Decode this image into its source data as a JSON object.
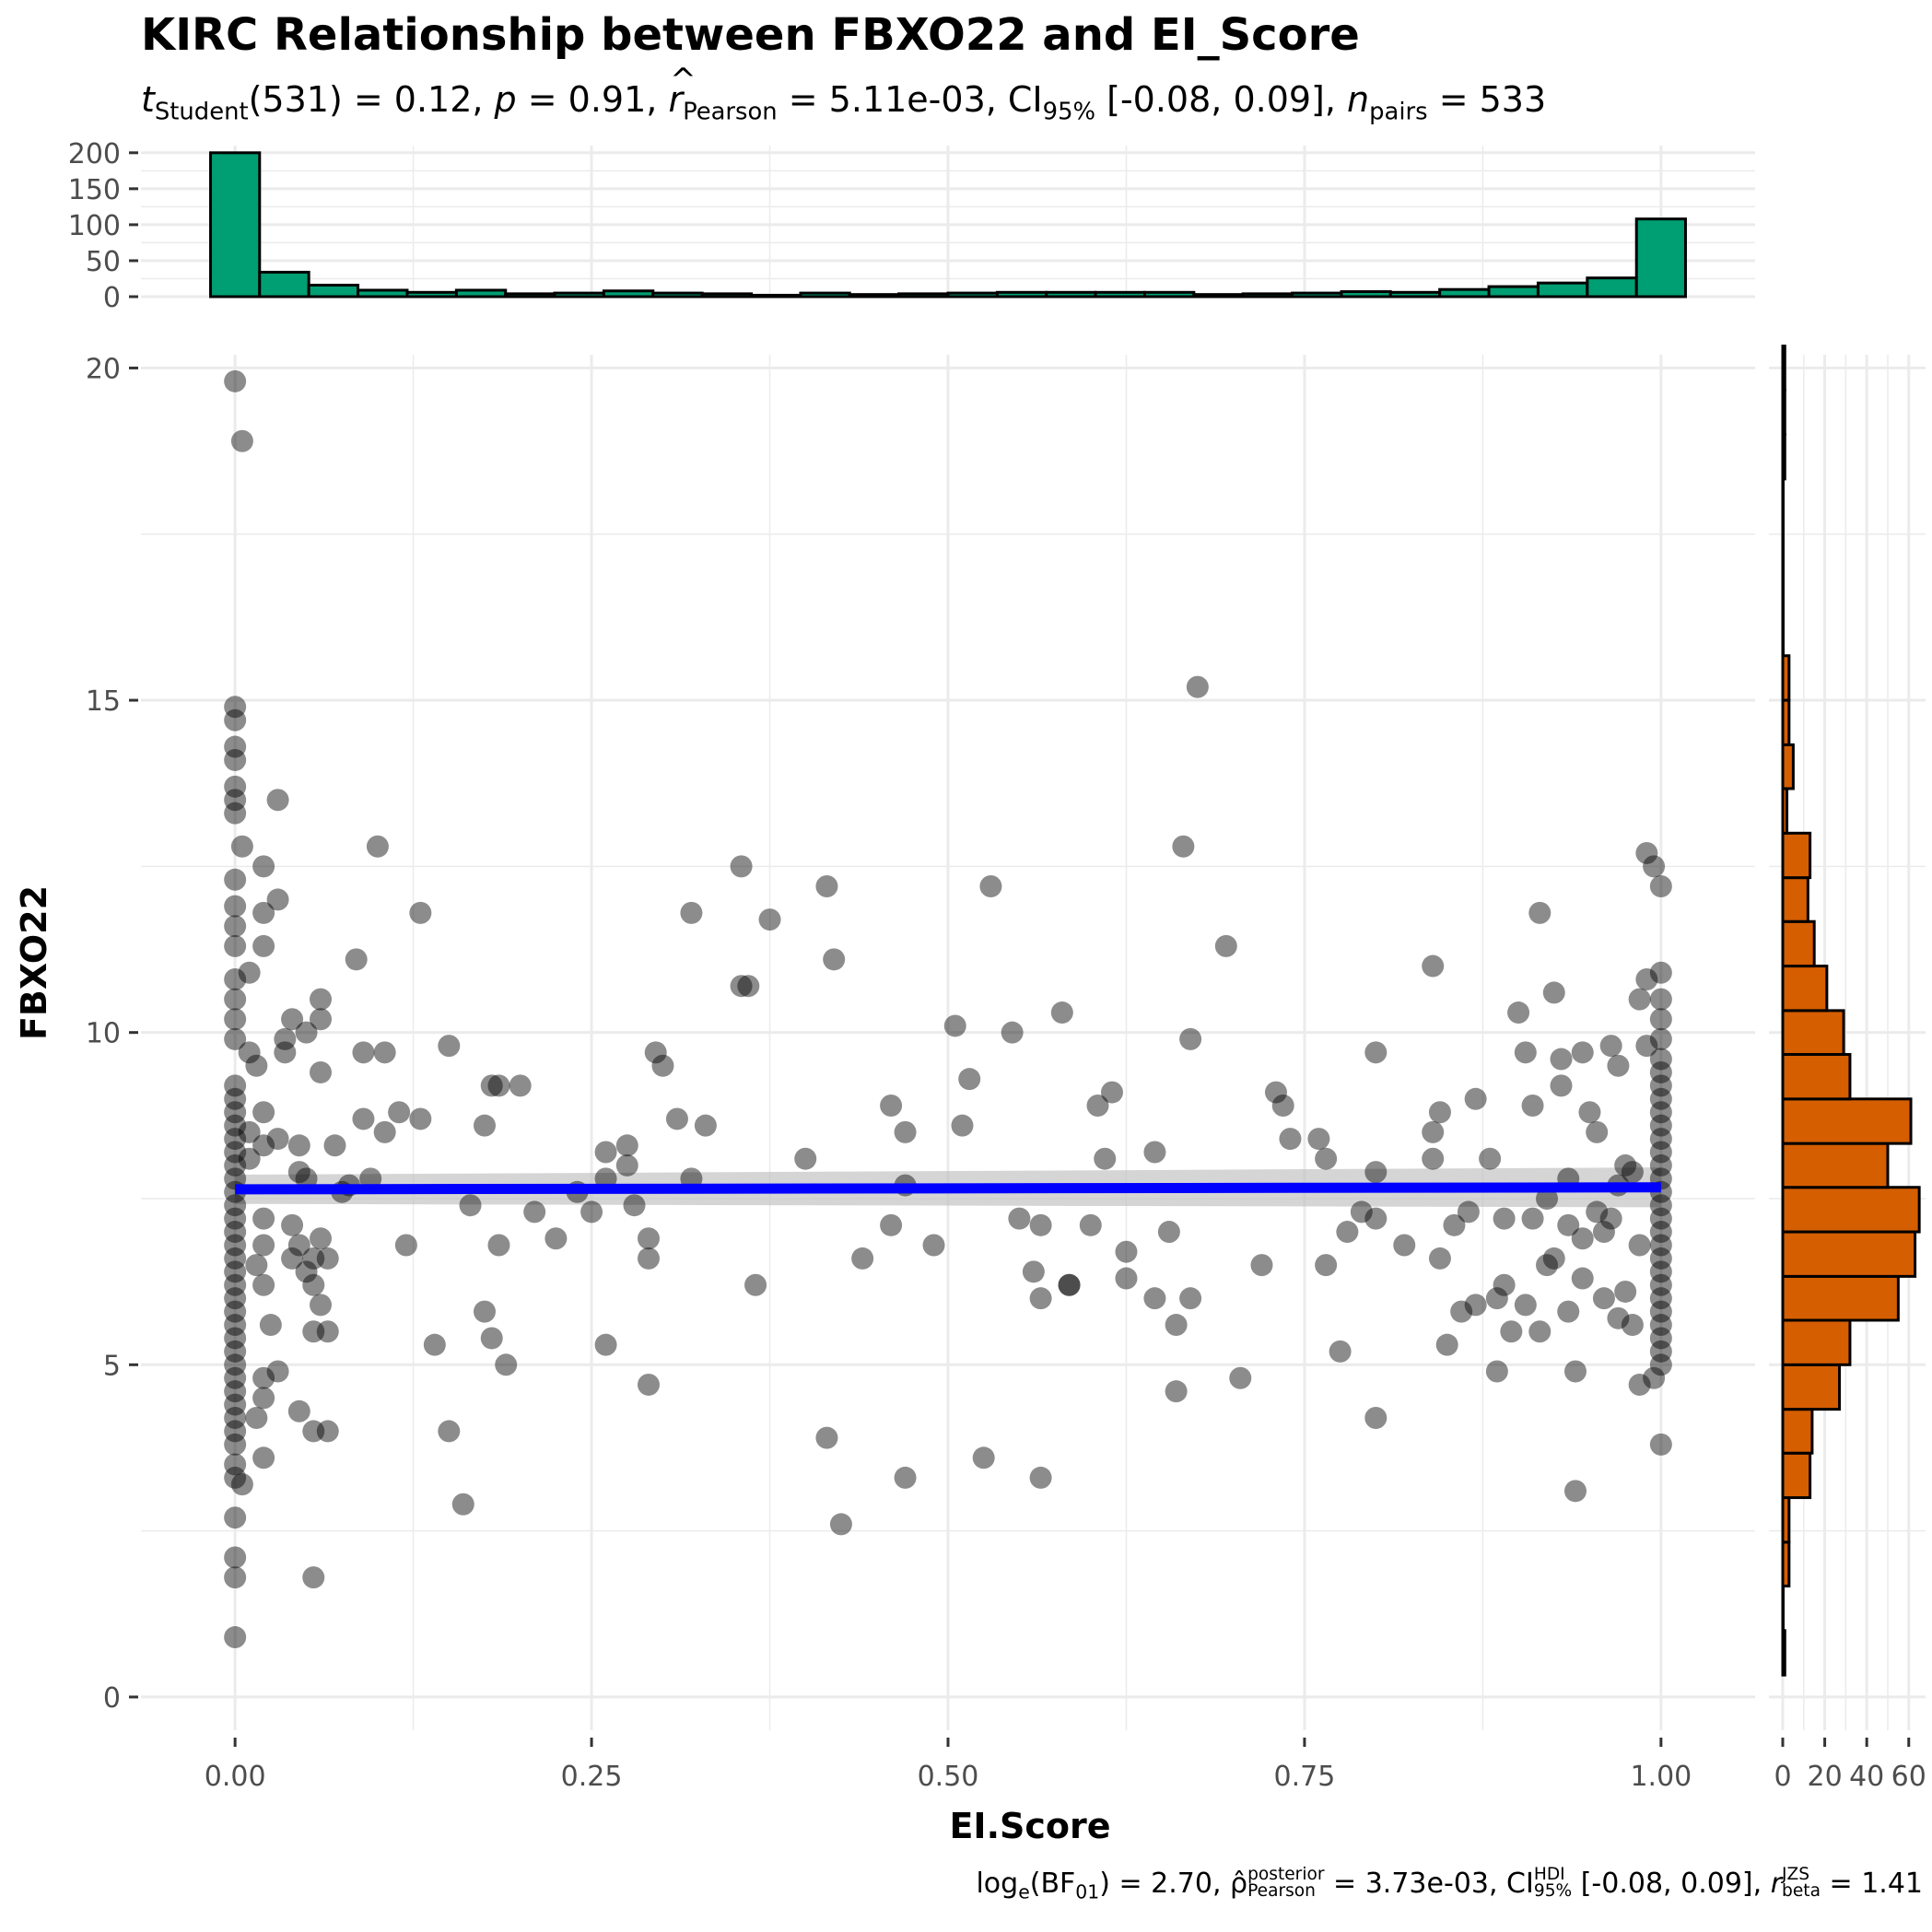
{
  "title": "KIRC Relationship between FBXO22 and EI_Score",
  "subtitle": {
    "t_symbol": "t",
    "t_sub": "Student",
    "t_text": "(531) = 0.12, ",
    "p_symbol": "p",
    "p_text": " = 0.91, ",
    "r_symbol": "r",
    "r_sub": "Pearson",
    "r_text": " = 5.11e-03, CI",
    "ci_sub": "95%",
    "ci_text": " [-0.08, 0.09], ",
    "n_symbol": "n",
    "n_sub": "pairs",
    "n_text": " = 533"
  },
  "footer": {
    "log_text": "log",
    "log_sub": "e",
    "bf_text": "(BF",
    "bf_sub": "01",
    "bf_close": ") = 2.70, ",
    "rho_symbol": "ρ̂",
    "rho_sup": "posterior",
    "rho_sub": "Pearson",
    "rho_text": " = 3.73e-03, CI",
    "hdi_sup": "HDI",
    "hdi_sub": "95%",
    "hdi_text": " [-0.08, 0.09], ",
    "rb_symbol": "r",
    "rb_sup": "JZS",
    "rb_sub": "beta",
    "rb_text": " = 1.41"
  },
  "chart_data": {
    "type": "scatter",
    "xlabel": "EI.Score",
    "ylabel": "FBXO22",
    "xlim": [
      -0.066,
      1.066
    ],
    "ylim": [
      -0.5,
      20.2
    ],
    "x_ticks": [
      0,
      0.25,
      0.5,
      0.75,
      1
    ],
    "x_tick_labels": [
      "0.00",
      "0.25",
      "0.50",
      "0.75",
      "1.00"
    ],
    "y_ticks": [
      0,
      5,
      10,
      15,
      20
    ],
    "y_tick_labels": [
      "0",
      "5",
      "10",
      "15",
      "20"
    ],
    "grid": true,
    "colors": {
      "points": "#000000",
      "fit_line": "#0000ff",
      "ci_band": "#bebebe",
      "top_hist": "#009e73",
      "right_hist": "#d55e00"
    },
    "fit": {
      "x": [
        0,
        1
      ],
      "y": [
        7.64,
        7.67
      ],
      "ci_lower": [
        7.42,
        7.37
      ],
      "ci_upper": [
        7.86,
        7.97
      ]
    },
    "points": [
      [
        0.0,
        19.8
      ],
      [
        0.005,
        18.9
      ],
      [
        0.0,
        14.9
      ],
      [
        0.0,
        14.7
      ],
      [
        0.0,
        14.3
      ],
      [
        0.0,
        14.1
      ],
      [
        0.0,
        13.7
      ],
      [
        0.0,
        13.5
      ],
      [
        0.0,
        13.3
      ],
      [
        0.03,
        13.5
      ],
      [
        0.005,
        12.8
      ],
      [
        0.0,
        12.3
      ],
      [
        0.02,
        12.5
      ],
      [
        0.03,
        12.0
      ],
      [
        0.0,
        11.9
      ],
      [
        0.02,
        11.8
      ],
      [
        0.0,
        11.6
      ],
      [
        0.0,
        11.3
      ],
      [
        0.02,
        11.3
      ],
      [
        0.01,
        10.9
      ],
      [
        0.0,
        10.8
      ],
      [
        0.0,
        10.5
      ],
      [
        0.0,
        10.2
      ],
      [
        0.0,
        9.9
      ],
      [
        0.01,
        9.7
      ],
      [
        0.04,
        10.2
      ],
      [
        0.035,
        9.9
      ],
      [
        0.035,
        9.7
      ],
      [
        0.05,
        10.0
      ],
      [
        0.06,
        9.4
      ],
      [
        0.06,
        10.2
      ],
      [
        0.06,
        10.5
      ],
      [
        0.085,
        11.1
      ],
      [
        0.1,
        12.8
      ],
      [
        0.13,
        11.8
      ],
      [
        0.0,
        9.2
      ],
      [
        0.0,
        9.0
      ],
      [
        0.0,
        8.8
      ],
      [
        0.0,
        8.6
      ],
      [
        0.0,
        8.4
      ],
      [
        0.0,
        8.2
      ],
      [
        0.0,
        8.0
      ],
      [
        0.0,
        7.8
      ],
      [
        0.0,
        7.6
      ],
      [
        0.0,
        7.4
      ],
      [
        0.0,
        7.2
      ],
      [
        0.0,
        7.0
      ],
      [
        0.0,
        6.8
      ],
      [
        0.0,
        6.6
      ],
      [
        0.0,
        6.4
      ],
      [
        0.0,
        6.2
      ],
      [
        0.0,
        6.0
      ],
      [
        0.0,
        5.8
      ],
      [
        0.0,
        5.6
      ],
      [
        0.0,
        5.4
      ],
      [
        0.0,
        5.2
      ],
      [
        0.0,
        5.0
      ],
      [
        0.0,
        4.8
      ],
      [
        0.0,
        4.6
      ],
      [
        0.0,
        4.4
      ],
      [
        0.0,
        4.2
      ],
      [
        0.0,
        4.0
      ],
      [
        0.0,
        3.8
      ],
      [
        0.0,
        3.5
      ],
      [
        0.0,
        3.3
      ],
      [
        0.0,
        2.7
      ],
      [
        0.0,
        2.1
      ],
      [
        0.0,
        1.8
      ],
      [
        0.0,
        0.9
      ],
      [
        0.005,
        3.2
      ],
      [
        0.01,
        8.5
      ],
      [
        0.01,
        8.1
      ],
      [
        0.015,
        9.5
      ],
      [
        0.02,
        8.8
      ],
      [
        0.02,
        8.3
      ],
      [
        0.03,
        8.4
      ],
      [
        0.045,
        8.3
      ],
      [
        0.02,
        7.2
      ],
      [
        0.02,
        6.8
      ],
      [
        0.015,
        6.5
      ],
      [
        0.02,
        6.2
      ],
      [
        0.025,
        5.6
      ],
      [
        0.02,
        4.8
      ],
      [
        0.02,
        4.5
      ],
      [
        0.015,
        4.2
      ],
      [
        0.02,
        3.6
      ],
      [
        0.03,
        4.9
      ],
      [
        0.04,
        7.1
      ],
      [
        0.045,
        6.8
      ],
      [
        0.04,
        6.6
      ],
      [
        0.05,
        7.8
      ],
      [
        0.045,
        7.9
      ],
      [
        0.05,
        6.4
      ],
      [
        0.055,
        6.6
      ],
      [
        0.06,
        6.9
      ],
      [
        0.065,
        6.6
      ],
      [
        0.055,
        6.2
      ],
      [
        0.06,
        5.9
      ],
      [
        0.055,
        5.5
      ],
      [
        0.065,
        5.5
      ],
      [
        0.045,
        4.3
      ],
      [
        0.055,
        4.0
      ],
      [
        0.065,
        4.0
      ],
      [
        0.055,
        1.8
      ],
      [
        0.07,
        8.3
      ],
      [
        0.075,
        7.6
      ],
      [
        0.08,
        7.7
      ],
      [
        0.09,
        9.7
      ],
      [
        0.09,
        8.7
      ],
      [
        0.095,
        7.8
      ],
      [
        0.105,
        9.7
      ],
      [
        0.105,
        8.5
      ],
      [
        0.115,
        8.8
      ],
      [
        0.12,
        6.8
      ],
      [
        0.13,
        8.7
      ],
      [
        0.14,
        5.3
      ],
      [
        0.15,
        9.8
      ],
      [
        0.15,
        4.0
      ],
      [
        0.16,
        2.9
      ],
      [
        0.165,
        7.4
      ],
      [
        0.175,
        8.6
      ],
      [
        0.175,
        5.8
      ],
      [
        0.18,
        9.2
      ],
      [
        0.18,
        5.4
      ],
      [
        0.185,
        9.2
      ],
      [
        0.185,
        6.8
      ],
      [
        0.19,
        5.0
      ],
      [
        0.2,
        9.2
      ],
      [
        0.21,
        7.3
      ],
      [
        0.225,
        6.9
      ],
      [
        0.24,
        7.6
      ],
      [
        0.25,
        7.3
      ],
      [
        0.26,
        8.2
      ],
      [
        0.26,
        7.8
      ],
      [
        0.26,
        5.3
      ],
      [
        0.275,
        8.3
      ],
      [
        0.275,
        8.0
      ],
      [
        0.28,
        7.4
      ],
      [
        0.29,
        6.9
      ],
      [
        0.29,
        6.6
      ],
      [
        0.29,
        4.7
      ],
      [
        0.295,
        9.7
      ],
      [
        0.3,
        9.5
      ],
      [
        0.31,
        8.7
      ],
      [
        0.32,
        11.8
      ],
      [
        0.32,
        7.8
      ],
      [
        0.33,
        8.6
      ],
      [
        0.355,
        12.5
      ],
      [
        0.355,
        10.7
      ],
      [
        0.36,
        10.7
      ],
      [
        0.365,
        6.2
      ],
      [
        0.375,
        11.7
      ],
      [
        0.4,
        8.1
      ],
      [
        0.415,
        12.2
      ],
      [
        0.415,
        3.9
      ],
      [
        0.42,
        11.1
      ],
      [
        0.425,
        2.6
      ],
      [
        0.44,
        6.6
      ],
      [
        0.46,
        8.9
      ],
      [
        0.46,
        7.1
      ],
      [
        0.47,
        8.5
      ],
      [
        0.47,
        7.7
      ],
      [
        0.47,
        3.3
      ],
      [
        0.49,
        6.8
      ],
      [
        0.505,
        10.1
      ],
      [
        0.51,
        8.6
      ],
      [
        0.515,
        9.3
      ],
      [
        0.525,
        3.6
      ],
      [
        0.53,
        12.2
      ],
      [
        0.545,
        10.0
      ],
      [
        0.55,
        7.2
      ],
      [
        0.56,
        6.4
      ],
      [
        0.565,
        7.1
      ],
      [
        0.565,
        6.0
      ],
      [
        0.565,
        3.3
      ],
      [
        0.58,
        10.3
      ],
      [
        0.585,
        6.2
      ],
      [
        0.585,
        6.2
      ],
      [
        0.6,
        7.1
      ],
      [
        0.605,
        8.9
      ],
      [
        0.61,
        8.1
      ],
      [
        0.615,
        9.1
      ],
      [
        0.625,
        6.7
      ],
      [
        0.625,
        6.3
      ],
      [
        0.645,
        8.2
      ],
      [
        0.645,
        6.0
      ],
      [
        0.655,
        7.0
      ],
      [
        0.66,
        5.6
      ],
      [
        0.66,
        4.6
      ],
      [
        0.665,
        12.8
      ],
      [
        0.67,
        9.9
      ],
      [
        0.67,
        6.0
      ],
      [
        0.675,
        15.2
      ],
      [
        0.695,
        11.3
      ],
      [
        0.705,
        4.8
      ],
      [
        0.72,
        6.5
      ],
      [
        0.73,
        9.1
      ],
      [
        0.735,
        8.9
      ],
      [
        0.74,
        8.4
      ],
      [
        0.76,
        8.4
      ],
      [
        0.765,
        8.1
      ],
      [
        0.765,
        6.5
      ],
      [
        0.775,
        5.2
      ],
      [
        0.78,
        7.0
      ],
      [
        0.79,
        7.3
      ],
      [
        0.8,
        9.7
      ],
      [
        0.8,
        7.9
      ],
      [
        0.8,
        7.2
      ],
      [
        0.8,
        4.2
      ],
      [
        0.82,
        6.8
      ],
      [
        0.84,
        11.0
      ],
      [
        0.84,
        8.5
      ],
      [
        0.84,
        8.1
      ],
      [
        0.845,
        8.8
      ],
      [
        0.845,
        6.6
      ],
      [
        0.85,
        5.3
      ],
      [
        0.855,
        7.1
      ],
      [
        0.86,
        5.8
      ],
      [
        0.865,
        7.3
      ],
      [
        0.87,
        9.0
      ],
      [
        0.87,
        5.9
      ],
      [
        0.88,
        8.1
      ],
      [
        0.885,
        6.0
      ],
      [
        0.885,
        4.9
      ],
      [
        0.89,
        7.2
      ],
      [
        0.89,
        6.2
      ],
      [
        0.895,
        5.5
      ],
      [
        0.9,
        10.3
      ],
      [
        0.905,
        9.7
      ],
      [
        0.905,
        5.9
      ],
      [
        0.91,
        8.9
      ],
      [
        0.91,
        7.2
      ],
      [
        0.915,
        11.8
      ],
      [
        0.915,
        5.5
      ],
      [
        0.92,
        7.5
      ],
      [
        0.92,
        6.5
      ],
      [
        0.925,
        10.6
      ],
      [
        0.925,
        6.6
      ],
      [
        0.93,
        9.6
      ],
      [
        0.93,
        9.2
      ],
      [
        0.935,
        7.8
      ],
      [
        0.935,
        7.1
      ],
      [
        0.935,
        5.8
      ],
      [
        0.94,
        4.9
      ],
      [
        0.94,
        3.1
      ],
      [
        0.945,
        9.7
      ],
      [
        0.945,
        6.9
      ],
      [
        0.945,
        6.3
      ],
      [
        0.95,
        8.8
      ],
      [
        0.955,
        8.5
      ],
      [
        0.955,
        7.3
      ],
      [
        0.96,
        7.0
      ],
      [
        0.96,
        6.0
      ],
      [
        0.965,
        9.8
      ],
      [
        0.965,
        7.2
      ],
      [
        0.97,
        9.5
      ],
      [
        0.97,
        7.7
      ],
      [
        0.97,
        5.7
      ],
      [
        0.975,
        8.0
      ],
      [
        0.975,
        6.1
      ],
      [
        0.98,
        7.9
      ],
      [
        0.98,
        5.6
      ],
      [
        0.985,
        10.5
      ],
      [
        0.985,
        6.8
      ],
      [
        0.985,
        4.7
      ],
      [
        0.99,
        12.7
      ],
      [
        0.99,
        10.8
      ],
      [
        0.99,
        9.8
      ],
      [
        0.995,
        12.5
      ],
      [
        0.995,
        4.8
      ],
      [
        1.0,
        12.2
      ],
      [
        1.0,
        10.9
      ],
      [
        1.0,
        10.5
      ],
      [
        1.0,
        10.2
      ],
      [
        1.0,
        9.9
      ],
      [
        1.0,
        9.6
      ],
      [
        1.0,
        9.4
      ],
      [
        1.0,
        9.2
      ],
      [
        1.0,
        9.0
      ],
      [
        1.0,
        8.8
      ],
      [
        1.0,
        8.6
      ],
      [
        1.0,
        8.4
      ],
      [
        1.0,
        8.2
      ],
      [
        1.0,
        8.0
      ],
      [
        1.0,
        7.8
      ],
      [
        1.0,
        7.6
      ],
      [
        1.0,
        7.4
      ],
      [
        1.0,
        7.2
      ],
      [
        1.0,
        7.0
      ],
      [
        1.0,
        6.8
      ],
      [
        1.0,
        6.6
      ],
      [
        1.0,
        6.4
      ],
      [
        1.0,
        6.2
      ],
      [
        1.0,
        6.0
      ],
      [
        1.0,
        5.8
      ],
      [
        1.0,
        5.6
      ],
      [
        1.0,
        5.4
      ],
      [
        1.0,
        5.2
      ],
      [
        1.0,
        5.0
      ],
      [
        1.0,
        3.8
      ]
    ],
    "x_histogram": {
      "y_ticks": [
        0,
        50,
        100,
        150,
        200
      ],
      "y_tick_labels": [
        "0",
        "50",
        "100",
        "150",
        "200"
      ],
      "bins": [
        [
          -0.0172,
          0.0172,
          200
        ],
        [
          0.0172,
          0.0517,
          34
        ],
        [
          0.0517,
          0.0862,
          16
        ],
        [
          0.0862,
          0.1207,
          9
        ],
        [
          0.1207,
          0.1552,
          6
        ],
        [
          0.1552,
          0.1897,
          9
        ],
        [
          0.1897,
          0.2241,
          4
        ],
        [
          0.2241,
          0.2586,
          5
        ],
        [
          0.2586,
          0.2931,
          8
        ],
        [
          0.2931,
          0.3276,
          5
        ],
        [
          0.3276,
          0.3621,
          4
        ],
        [
          0.3621,
          0.3966,
          2
        ],
        [
          0.3966,
          0.431,
          5
        ],
        [
          0.431,
          0.4655,
          3
        ],
        [
          0.4655,
          0.5,
          4
        ],
        [
          0.5,
          0.5345,
          5
        ],
        [
          0.5345,
          0.569,
          6
        ],
        [
          0.569,
          0.6034,
          6
        ],
        [
          0.6034,
          0.6379,
          6
        ],
        [
          0.6379,
          0.6724,
          6
        ],
        [
          0.6724,
          0.7069,
          3
        ],
        [
          0.7069,
          0.7414,
          4
        ],
        [
          0.7414,
          0.7759,
          5
        ],
        [
          0.7759,
          0.8103,
          7
        ],
        [
          0.8103,
          0.8448,
          6
        ],
        [
          0.8448,
          0.8793,
          10
        ],
        [
          0.8793,
          0.9138,
          14
        ],
        [
          0.9138,
          0.9483,
          19
        ],
        [
          0.9483,
          0.9828,
          26
        ],
        [
          0.9828,
          1.0172,
          108
        ]
      ]
    },
    "y_histogram": {
      "x_ticks": [
        0,
        20,
        40,
        60
      ],
      "x_tick_labels": [
        "0",
        "20",
        "40",
        "60"
      ],
      "bins": [
        [
          0.33,
          1.0,
          1
        ],
        [
          1.0,
          1.67,
          0
        ],
        [
          1.67,
          2.33,
          3
        ],
        [
          2.33,
          3.0,
          3
        ],
        [
          3.0,
          3.67,
          13
        ],
        [
          3.67,
          4.33,
          14
        ],
        [
          4.33,
          5.0,
          27
        ],
        [
          5.0,
          5.67,
          32
        ],
        [
          5.67,
          6.33,
          55
        ],
        [
          6.33,
          7.0,
          63
        ],
        [
          7.0,
          7.67,
          65
        ],
        [
          7.67,
          8.33,
          50
        ],
        [
          8.33,
          9.0,
          61
        ],
        [
          9.0,
          9.67,
          32
        ],
        [
          9.67,
          10.33,
          29
        ],
        [
          10.33,
          11.0,
          21
        ],
        [
          11.0,
          11.67,
          15
        ],
        [
          11.67,
          12.33,
          12
        ],
        [
          12.33,
          13.0,
          13
        ],
        [
          13.0,
          13.67,
          2
        ],
        [
          13.67,
          14.33,
          5
        ],
        [
          14.33,
          15.0,
          3
        ],
        [
          15.0,
          15.67,
          3
        ],
        [
          15.67,
          16.33,
          0
        ],
        [
          16.33,
          17.0,
          0
        ],
        [
          17.0,
          17.67,
          0
        ],
        [
          17.67,
          18.33,
          0
        ],
        [
          18.33,
          19.0,
          1
        ],
        [
          19.0,
          19.67,
          1
        ],
        [
          19.67,
          20.33,
          1
        ]
      ]
    }
  }
}
